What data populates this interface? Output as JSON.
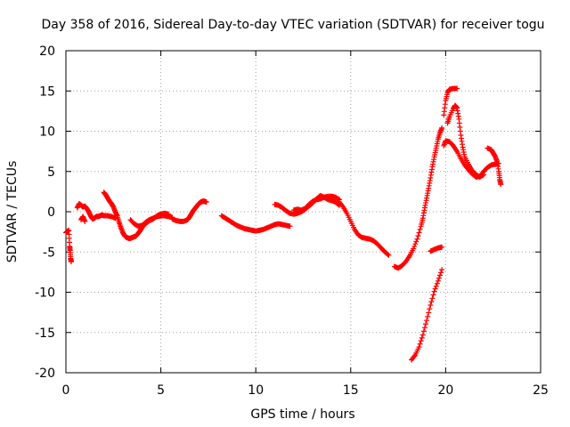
{
  "chart_data": {
    "type": "scatter",
    "title": "Day 358 of 2016, Sidereal Day-to-day VTEC variation (SDTVAR) for receiver togu",
    "xlabel": "GPS time / hours",
    "ylabel": "SDTVAR / TECUs",
    "xlim": [
      0,
      25
    ],
    "ylim": [
      -20,
      20
    ],
    "xticks": [
      0,
      5,
      10,
      15,
      20,
      25
    ],
    "yticks": [
      -20,
      -15,
      -10,
      -5,
      0,
      5,
      10,
      15,
      20
    ],
    "grid": true,
    "marker": "+",
    "color": "#ff0000",
    "series": [
      {
        "name": "seg-start",
        "points": [
          [
            0.0,
            -2.6
          ],
          [
            0.1,
            -2.4
          ],
          [
            0.15,
            -2.3
          ],
          [
            0.2,
            -4.3
          ],
          [
            0.22,
            -4.8
          ],
          [
            0.25,
            -5.8
          ],
          [
            0.28,
            -6.2
          ]
        ]
      },
      {
        "name": "seg-1",
        "points": [
          [
            0.6,
            0.5
          ],
          [
            0.7,
            1.0
          ],
          [
            0.8,
            0.8
          ],
          [
            0.9,
            0.6
          ],
          [
            1.0,
            0.7
          ],
          [
            1.1,
            0.4
          ],
          [
            1.2,
            0.0
          ],
          [
            1.3,
            -0.5
          ],
          [
            1.4,
            -0.9
          ],
          [
            1.5,
            -0.8
          ],
          [
            1.6,
            -0.6
          ],
          [
            1.7,
            -0.6
          ],
          [
            1.8,
            -0.5
          ],
          [
            1.9,
            -0.4
          ],
          [
            2.0,
            -0.5
          ],
          [
            2.2,
            -0.5
          ],
          [
            2.4,
            -0.6
          ],
          [
            2.6,
            -0.8
          ]
        ]
      },
      {
        "name": "seg-1b",
        "points": [
          [
            0.8,
            -1.0
          ],
          [
            0.9,
            -0.6
          ],
          [
            1.0,
            -1.2
          ]
        ]
      },
      {
        "name": "seg-2",
        "points": [
          [
            2.0,
            2.4
          ],
          [
            2.1,
            2.1
          ],
          [
            2.2,
            1.7
          ],
          [
            2.3,
            1.3
          ],
          [
            2.4,
            1.0
          ],
          [
            2.5,
            0.6
          ],
          [
            2.6,
            0.0
          ],
          [
            2.7,
            -0.5
          ],
          [
            2.8,
            -1.3
          ],
          [
            2.9,
            -2.0
          ],
          [
            3.0,
            -2.6
          ],
          [
            3.1,
            -3.0
          ],
          [
            3.2,
            -3.2
          ],
          [
            3.3,
            -3.3
          ],
          [
            3.4,
            -3.3
          ],
          [
            3.5,
            -3.2
          ],
          [
            3.6,
            -3.1
          ],
          [
            3.7,
            -3.0
          ],
          [
            3.8,
            -2.7
          ],
          [
            3.9,
            -2.4
          ],
          [
            4.0,
            -2.0
          ],
          [
            4.1,
            -1.6
          ],
          [
            4.2,
            -1.3
          ],
          [
            4.4,
            -1.0
          ],
          [
            4.6,
            -0.8
          ],
          [
            4.8,
            -0.6
          ],
          [
            5.0,
            -0.5
          ],
          [
            5.2,
            -0.5
          ],
          [
            5.4,
            -0.6
          ],
          [
            5.6,
            -0.7
          ]
        ]
      },
      {
        "name": "seg-2b",
        "points": [
          [
            3.4,
            -1.0
          ],
          [
            3.6,
            -1.5
          ],
          [
            3.8,
            -1.8
          ],
          [
            4.0,
            -1.7
          ],
          [
            4.2,
            -1.5
          ],
          [
            4.4,
            -1.1
          ],
          [
            4.6,
            -0.9
          ],
          [
            4.8,
            -0.5
          ],
          [
            5.0,
            -0.3
          ],
          [
            5.2,
            -0.2
          ],
          [
            5.4,
            -0.3
          ]
        ]
      },
      {
        "name": "seg-3",
        "points": [
          [
            5.6,
            -0.9
          ],
          [
            5.8,
            -1.1
          ],
          [
            6.0,
            -1.2
          ],
          [
            6.2,
            -1.2
          ],
          [
            6.4,
            -1.0
          ],
          [
            6.5,
            -0.7
          ],
          [
            6.6,
            -0.3
          ],
          [
            6.7,
            0.1
          ],
          [
            6.8,
            0.4
          ],
          [
            6.9,
            0.7
          ],
          [
            7.0,
            1.0
          ],
          [
            7.1,
            1.2
          ],
          [
            7.2,
            1.3
          ],
          [
            7.3,
            1.3
          ],
          [
            7.4,
            1.2
          ]
        ]
      },
      {
        "name": "seg-4",
        "points": [
          [
            8.2,
            -0.5
          ],
          [
            8.4,
            -0.8
          ],
          [
            8.6,
            -1.1
          ],
          [
            8.8,
            -1.4
          ],
          [
            9.0,
            -1.7
          ],
          [
            9.2,
            -1.9
          ],
          [
            9.4,
            -2.1
          ],
          [
            9.6,
            -2.2
          ],
          [
            9.8,
            -2.3
          ],
          [
            10.0,
            -2.4
          ],
          [
            10.2,
            -2.3
          ],
          [
            10.4,
            -2.2
          ],
          [
            10.6,
            -2.0
          ],
          [
            10.8,
            -1.8
          ],
          [
            11.0,
            -1.6
          ],
          [
            11.2,
            -1.5
          ],
          [
            11.4,
            -1.6
          ],
          [
            11.6,
            -1.7
          ],
          [
            11.8,
            -1.8
          ]
        ]
      },
      {
        "name": "seg-5",
        "points": [
          [
            11.0,
            0.9
          ],
          [
            11.2,
            0.8
          ],
          [
            11.4,
            0.5
          ],
          [
            11.6,
            0.1
          ],
          [
            11.8,
            -0.2
          ],
          [
            12.0,
            -0.3
          ],
          [
            12.2,
            -0.2
          ],
          [
            12.4,
            0.0
          ],
          [
            12.6,
            0.3
          ],
          [
            12.8,
            0.7
          ],
          [
            13.0,
            1.1
          ],
          [
            13.2,
            1.6
          ],
          [
            13.4,
            2.0
          ],
          [
            13.6,
            1.8
          ],
          [
            13.8,
            1.5
          ],
          [
            14.0,
            1.4
          ],
          [
            14.2,
            1.2
          ],
          [
            14.4,
            0.8
          ]
        ]
      },
      {
        "name": "seg-5b",
        "points": [
          [
            12.0,
            0.2
          ],
          [
            12.2,
            0.3
          ],
          [
            12.4,
            0.2
          ],
          [
            12.6,
            0.4
          ],
          [
            12.8,
            0.9
          ],
          [
            13.0,
            1.3
          ],
          [
            13.2,
            1.5
          ],
          [
            13.4,
            1.6
          ],
          [
            13.6,
            1.8
          ],
          [
            13.8,
            1.9
          ],
          [
            14.0,
            1.9
          ],
          [
            14.2,
            1.8
          ],
          [
            14.4,
            1.5
          ]
        ]
      },
      {
        "name": "seg-6",
        "points": [
          [
            14.4,
            1.2
          ],
          [
            14.6,
            0.6
          ],
          [
            14.8,
            -0.2
          ],
          [
            15.0,
            -1.2
          ],
          [
            15.2,
            -2.2
          ],
          [
            15.4,
            -2.9
          ],
          [
            15.6,
            -3.2
          ],
          [
            15.8,
            -3.3
          ],
          [
            16.0,
            -3.4
          ],
          [
            16.2,
            -3.6
          ],
          [
            16.4,
            -4.0
          ],
          [
            16.6,
            -4.5
          ],
          [
            16.8,
            -5.0
          ],
          [
            17.0,
            -5.4
          ]
        ]
      },
      {
        "name": "seg-7",
        "points": [
          [
            17.3,
            -6.8
          ],
          [
            17.5,
            -7.0
          ],
          [
            17.7,
            -6.7
          ],
          [
            17.9,
            -6.2
          ],
          [
            18.1,
            -5.5
          ],
          [
            18.3,
            -4.6
          ],
          [
            18.5,
            -3.4
          ],
          [
            18.7,
            -1.8
          ],
          [
            18.8,
            -0.8
          ],
          [
            18.9,
            0.5
          ],
          [
            19.0,
            1.7
          ],
          [
            19.1,
            2.9
          ],
          [
            19.2,
            4.2
          ],
          [
            19.3,
            5.6
          ],
          [
            19.4,
            6.8
          ],
          [
            19.5,
            7.9
          ],
          [
            19.6,
            9.0
          ],
          [
            19.7,
            9.8
          ],
          [
            19.8,
            10.4
          ]
        ]
      },
      {
        "name": "seg-8",
        "points": [
          [
            18.2,
            -18.4
          ],
          [
            18.4,
            -17.8
          ],
          [
            18.6,
            -16.8
          ],
          [
            18.8,
            -15.3
          ],
          [
            19.0,
            -13.5
          ],
          [
            19.2,
            -11.6
          ],
          [
            19.4,
            -9.9
          ],
          [
            19.6,
            -8.6
          ],
          [
            19.8,
            -7.2
          ]
        ]
      },
      {
        "name": "seg-9",
        "points": [
          [
            19.2,
            -4.9
          ],
          [
            19.4,
            -4.7
          ],
          [
            19.6,
            -4.5
          ],
          [
            19.8,
            -4.4
          ]
        ]
      },
      {
        "name": "seg-10",
        "points": [
          [
            19.9,
            8.2
          ],
          [
            20.0,
            8.8
          ],
          [
            20.2,
            8.7
          ],
          [
            20.4,
            8.2
          ],
          [
            20.6,
            7.5
          ],
          [
            20.8,
            6.6
          ],
          [
            21.0,
            5.8
          ],
          [
            21.2,
            5.2
          ],
          [
            21.4,
            4.7
          ],
          [
            21.6,
            4.3
          ],
          [
            21.8,
            4.4
          ],
          [
            22.0,
            5.0
          ],
          [
            22.2,
            5.5
          ],
          [
            22.4,
            5.8
          ],
          [
            22.6,
            5.9
          ],
          [
            22.8,
            6.0
          ]
        ]
      },
      {
        "name": "seg-11",
        "points": [
          [
            19.9,
            12.0
          ],
          [
            20.0,
            13.8
          ],
          [
            20.1,
            14.8
          ],
          [
            20.2,
            15.2
          ],
          [
            20.4,
            15.3
          ],
          [
            20.6,
            15.3
          ]
        ]
      },
      {
        "name": "seg-12",
        "points": [
          [
            20.1,
            11.0
          ],
          [
            20.2,
            11.8
          ],
          [
            20.4,
            12.8
          ],
          [
            20.5,
            13.2
          ],
          [
            20.6,
            12.9
          ],
          [
            20.7,
            11.5
          ],
          [
            20.8,
            9.5
          ],
          [
            20.9,
            8.0
          ],
          [
            21.0,
            6.8
          ],
          [
            21.2,
            5.9
          ],
          [
            21.4,
            5.1
          ],
          [
            21.6,
            4.6
          ],
          [
            21.8,
            4.3
          ],
          [
            22.0,
            4.6
          ]
        ]
      },
      {
        "name": "seg-13",
        "points": [
          [
            22.2,
            7.9
          ],
          [
            22.4,
            7.7
          ],
          [
            22.5,
            7.3
          ],
          [
            22.6,
            6.9
          ],
          [
            22.7,
            6.3
          ],
          [
            22.8,
            5.0
          ],
          [
            22.85,
            4.0
          ],
          [
            22.9,
            3.4
          ]
        ]
      }
    ]
  }
}
